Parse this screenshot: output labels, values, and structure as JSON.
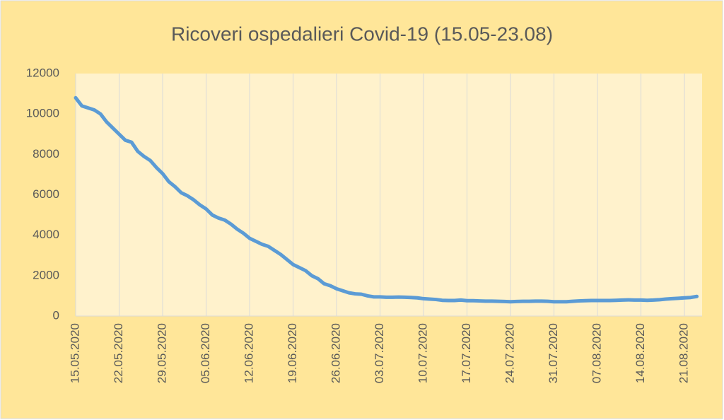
{
  "chart_data": {
    "type": "line",
    "title": "Ricoveri ospedalieri Covid-19 (15.05-23.08)",
    "categories": [
      "15.05.2020",
      null,
      null,
      null,
      null,
      null,
      null,
      "22.05.2020",
      null,
      null,
      null,
      null,
      null,
      null,
      "29.05.2020",
      null,
      null,
      null,
      null,
      null,
      null,
      "05.06.2020",
      null,
      null,
      null,
      null,
      null,
      null,
      "12.06.2020",
      null,
      null,
      null,
      null,
      null,
      null,
      "19.06.2020",
      null,
      null,
      null,
      null,
      null,
      null,
      "26.06.2020",
      null,
      null,
      null,
      null,
      null,
      null,
      "03.07.2020",
      null,
      null,
      null,
      null,
      null,
      null,
      "10.07.2020",
      null,
      null,
      null,
      null,
      null,
      null,
      "17.07.2020",
      null,
      null,
      null,
      null,
      null,
      null,
      "24.07.2020",
      null,
      null,
      null,
      null,
      null,
      null,
      "31.07.2020",
      null,
      null,
      null,
      null,
      null,
      null,
      "07.08.2020",
      null,
      null,
      null,
      null,
      null,
      null,
      "14.08.2020",
      null,
      null,
      null,
      null,
      null,
      null,
      "21.08.2020",
      null,
      null
    ],
    "series": [
      {
        "color": "#5b9bd5",
        "values": [
          10800,
          10400,
          10300,
          10200,
          10000,
          9600,
          9300,
          9000,
          8700,
          8600,
          8150,
          7900,
          7700,
          7350,
          7050,
          6650,
          6400,
          6100,
          5950,
          5750,
          5500,
          5300,
          5000,
          4850,
          4750,
          4550,
          4300,
          4100,
          3850,
          3700,
          3550,
          3450,
          3250,
          3050,
          2800,
          2550,
          2400,
          2250,
          2000,
          1850,
          1600,
          1500,
          1350,
          1250,
          1150,
          1100,
          1080,
          1000,
          950,
          950,
          930,
          930,
          940,
          930,
          920,
          900,
          860,
          840,
          820,
          780,
          770,
          770,
          790,
          760,
          760,
          750,
          740,
          740,
          730,
          720,
          710,
          720,
          730,
          730,
          740,
          740,
          730,
          710,
          710,
          710,
          730,
          750,
          760,
          770,
          770,
          770,
          770,
          780,
          790,
          800,
          790,
          790,
          780,
          790,
          810,
          840,
          860,
          880,
          900,
          920,
          970
        ]
      }
    ],
    "ylim": [
      0,
      12000
    ],
    "yticks": [
      0,
      2000,
      4000,
      6000,
      8000,
      10000,
      12000
    ],
    "xgrid": true
  }
}
